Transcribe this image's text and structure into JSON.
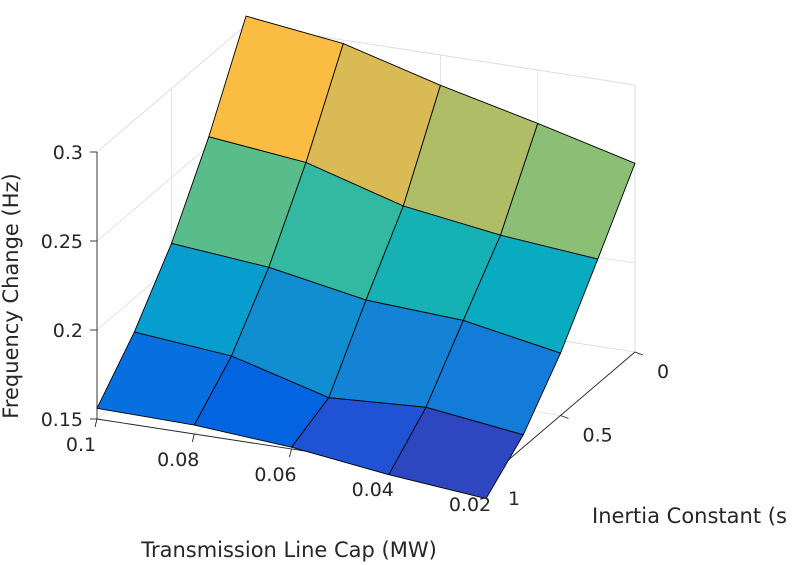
{
  "chart_data": {
    "type": "surface",
    "title": "",
    "xlabel": "Transmission Line Cap (MW)",
    "ylabel": "Inertia Constant (s",
    "zlabel": "Frequency Change (Hz)",
    "x": [
      0.1,
      0.08,
      0.06,
      0.04,
      0.02
    ],
    "y": [
      0,
      0.25,
      0.5,
      0.75,
      1
    ],
    "z": [
      [
        0.305,
        0.298,
        0.283,
        0.27,
        0.256
      ],
      [
        0.255,
        0.249,
        0.233,
        0.225,
        0.22
      ],
      [
        0.213,
        0.208,
        0.198,
        0.195,
        0.185
      ],
      [
        0.181,
        0.176,
        0.161,
        0.164,
        0.157
      ],
      [
        0.156,
        0.155,
        0.151,
        0.144,
        0.139
      ]
    ],
    "xticks": [
      "0.1",
      "0.08",
      "0.06",
      "0.04",
      "0.02"
    ],
    "yticks": [
      "0",
      "0.5",
      "1"
    ],
    "zticks": [
      "0.15",
      "0.2",
      "0.25",
      "0.3"
    ],
    "xlim": [
      0.02,
      0.1
    ],
    "ylim": [
      0,
      1
    ],
    "zlim": [
      0.15,
      0.3
    ],
    "colormap": "parula",
    "grid": true
  }
}
